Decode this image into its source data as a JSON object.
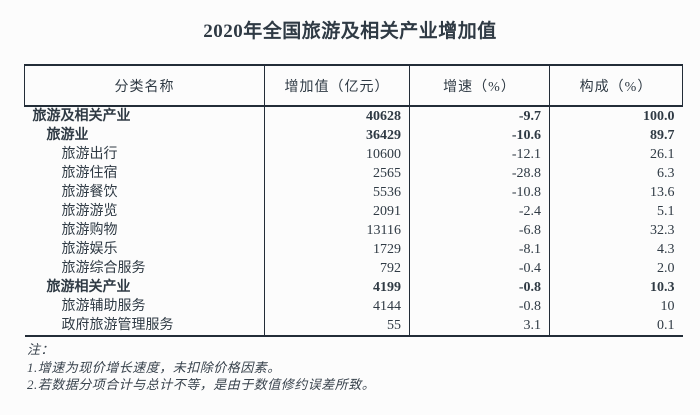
{
  "title": "2020年全国旅游及相关产业增加值",
  "table": {
    "headers": [
      "分类名称",
      "增加值（亿元）",
      "增速（%）",
      "构成（%）"
    ],
    "rows": [
      {
        "name": "旅游及相关产业",
        "indent": 0,
        "bold": true,
        "value": "40628",
        "growth": "-9.7",
        "share": "100.0"
      },
      {
        "name": "旅游业",
        "indent": 1,
        "bold": true,
        "value": "36429",
        "growth": "-10.6",
        "share": "89.7"
      },
      {
        "name": "旅游出行",
        "indent": 2,
        "bold": false,
        "value": "10600",
        "growth": "-12.1",
        "share": "26.1"
      },
      {
        "name": "旅游住宿",
        "indent": 2,
        "bold": false,
        "value": "2565",
        "growth": "-28.8",
        "share": "6.3"
      },
      {
        "name": "旅游餐饮",
        "indent": 2,
        "bold": false,
        "value": "5536",
        "growth": "-10.8",
        "share": "13.6"
      },
      {
        "name": "旅游游览",
        "indent": 2,
        "bold": false,
        "value": "2091",
        "growth": "-2.4",
        "share": "5.1"
      },
      {
        "name": "旅游购物",
        "indent": 2,
        "bold": false,
        "value": "13116",
        "growth": "-6.8",
        "share": "32.3"
      },
      {
        "name": "旅游娱乐",
        "indent": 2,
        "bold": false,
        "value": "1729",
        "growth": "-8.1",
        "share": "4.3"
      },
      {
        "name": "旅游综合服务",
        "indent": 2,
        "bold": false,
        "value": "792",
        "growth": "-0.4",
        "share": "2.0"
      },
      {
        "name": "旅游相关产业",
        "indent": 1,
        "bold": true,
        "value": "4199",
        "growth": "-0.8",
        "share": "10.3"
      },
      {
        "name": "旅游辅助服务",
        "indent": 2,
        "bold": false,
        "value": "4144",
        "growth": "-0.8",
        "share": "10"
      },
      {
        "name": "政府旅游管理服务",
        "indent": 2,
        "bold": false,
        "value": "55",
        "growth": "3.1",
        "share": "0.1"
      }
    ]
  },
  "notes": {
    "label": "注：",
    "items": [
      "1.增速为现价增长速度，未扣除价格因素。",
      "2.若数据分项合计与总计不等，是由于数值修约误差所致。"
    ]
  },
  "colors": {
    "text": "#2f3a44",
    "line": "#232d38",
    "background": "#fcfcfc"
  }
}
